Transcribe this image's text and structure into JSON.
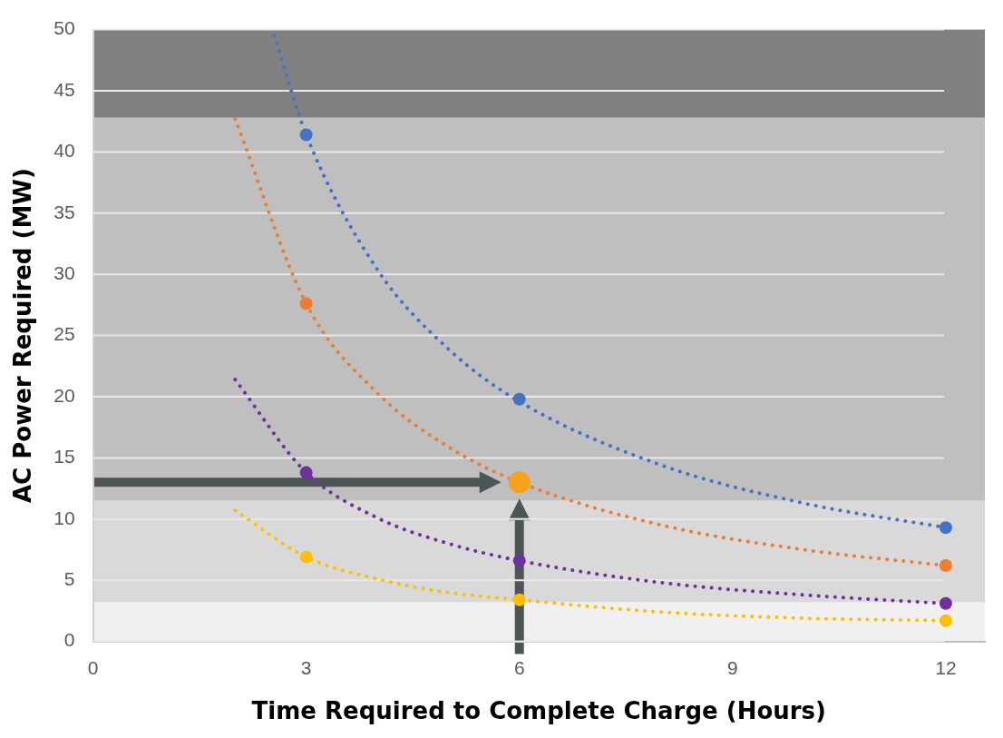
{
  "chart_data": {
    "type": "scatter",
    "xlabel": "Time Required to Complete Charge (Hours)",
    "ylabel": "AC Power Required (MW)",
    "xlim": [
      0,
      12.55
    ],
    "ylim": [
      0,
      50
    ],
    "xticks": [
      0,
      3,
      6,
      9,
      12
    ],
    "yticks": [
      0,
      5,
      10,
      15,
      20,
      25,
      30,
      35,
      40,
      45,
      50
    ],
    "grid": "y",
    "legend": false,
    "marker": "circle",
    "bands": [
      {
        "axis": "y",
        "from": 0,
        "to": 3.2,
        "color": "#f0f0f0"
      },
      {
        "axis": "y",
        "from": 3.2,
        "to": 11.5,
        "color": "#d9d9d9"
      },
      {
        "axis": "y",
        "from": 11.5,
        "to": 42.8,
        "color": "#bfbfbf"
      },
      {
        "axis": "y",
        "from": 42.8,
        "to": 50,
        "color": "#808080"
      }
    ],
    "series": [
      {
        "type": "line",
        "marker": "none",
        "line_style": "dotted",
        "color": "#4472c4",
        "x": [
          2.55,
          3,
          4,
          5,
          6,
          8,
          10,
          12
        ],
        "values": [
          49.5,
          41.4,
          30.4,
          23.9,
          19.6,
          14.4,
          11.3,
          9.3
        ]
      },
      {
        "type": "line",
        "marker": "none",
        "line_style": "dotted",
        "color": "#ed7d31",
        "x": [
          2,
          3,
          4,
          5,
          6,
          8,
          10,
          12
        ],
        "values": [
          42.7,
          27.6,
          20.3,
          15.9,
          13,
          9.5,
          7.5,
          6.2
        ]
      },
      {
        "type": "line",
        "marker": "none",
        "line_style": "dotted",
        "color": "#7030a0",
        "x": [
          2,
          3,
          4,
          5,
          6,
          8,
          10,
          12
        ],
        "values": [
          21.4,
          13.8,
          10.1,
          8,
          6.6,
          4.8,
          3.8,
          3.1
        ]
      },
      {
        "type": "line",
        "marker": "none",
        "line_style": "dotted",
        "color": "#ffc000",
        "x": [
          2,
          3,
          4,
          5,
          6,
          8,
          10,
          12
        ],
        "values": [
          10.7,
          6.9,
          5.1,
          4,
          3.4,
          2.4,
          1.9,
          1.7
        ]
      },
      {
        "color": "#4472c4",
        "x": [
          3,
          6,
          12
        ],
        "values": [
          41.4,
          19.8,
          9.3
        ]
      },
      {
        "color": "#ed7d31",
        "x": [
          3,
          6,
          12
        ],
        "values": [
          27.6,
          null,
          6.2
        ]
      },
      {
        "color": "#7030a0",
        "x": [
          3,
          6,
          12
        ],
        "values": [
          13.8,
          6.6,
          3.1
        ]
      },
      {
        "color": "#ffc000",
        "x": [
          3,
          6,
          12
        ],
        "values": [
          6.9,
          3.4,
          1.7
        ]
      },
      {
        "type": "bubble",
        "color": "#f7a11c",
        "x": [
          6
        ],
        "values": [
          13
        ],
        "sizes": [
          1
        ]
      }
    ]
  }
}
